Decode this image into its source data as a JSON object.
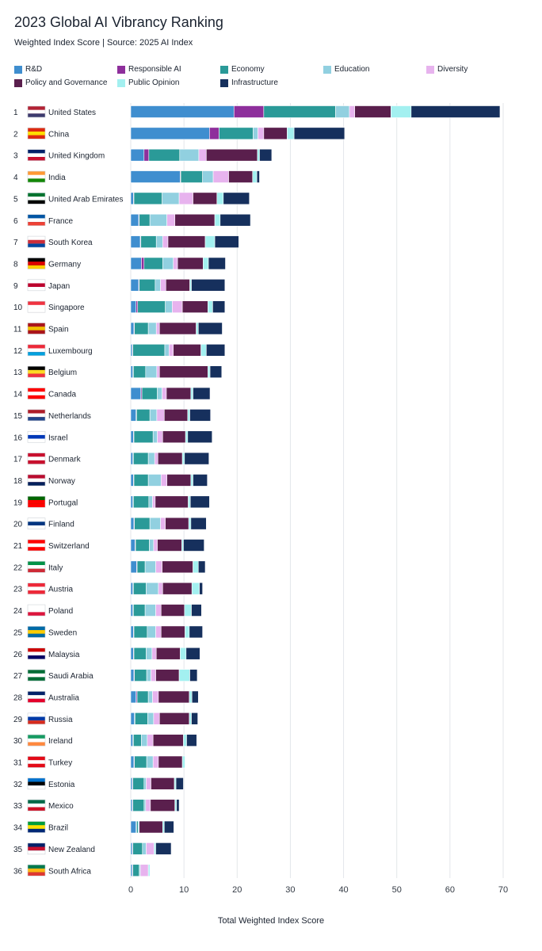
{
  "chart_data": {
    "type": "bar",
    "orientation": "horizontal",
    "stacked": true,
    "title": "2023 Global AI Vibrancy Ranking",
    "subtitle": "Weighted Index Score | Source: 2025 AI Index",
    "xlabel": "Total Weighted Index Score",
    "xlim": [
      0,
      70
    ],
    "xticks": [
      0,
      10,
      20,
      30,
      40,
      50,
      60,
      70
    ],
    "grid": true,
    "legend_position": "top",
    "categories": [
      "United States",
      "China",
      "United Kingdom",
      "India",
      "United Arab Emirates",
      "France",
      "South Korea",
      "Germany",
      "Japan",
      "Singapore",
      "Spain",
      "Luxembourg",
      "Belgium",
      "Canada",
      "Netherlands",
      "Israel",
      "Denmark",
      "Norway",
      "Portugal",
      "Finland",
      "Switzerland",
      "Italy",
      "Austria",
      "Poland",
      "Sweden",
      "Malaysia",
      "Saudi Arabia",
      "Australia",
      "Russia",
      "Ireland",
      "Turkey",
      "Estonia",
      "Mexico",
      "Brazil",
      "New Zealand",
      "South Africa"
    ],
    "ranks": [
      "1",
      "2",
      "3",
      "4",
      "5",
      "6",
      "7",
      "8",
      "9",
      "10",
      "11",
      "12",
      "13",
      "14",
      "15",
      "16",
      "17",
      "18",
      "19",
      "20",
      "21",
      "22",
      "23",
      "24",
      "25",
      "26",
      "27",
      "28",
      "29",
      "30",
      "31",
      "32",
      "33",
      "34",
      "35",
      "36"
    ],
    "series": [
      {
        "name": "R&D",
        "color": "#3f8ecf",
        "values": [
          19.4,
          14.8,
          2.5,
          9.3,
          0.5,
          1.5,
          1.8,
          2.0,
          1.5,
          1.0,
          0.6,
          0.3,
          0.4,
          1.9,
          1.0,
          0.5,
          0.4,
          0.5,
          0.4,
          0.6,
          0.8,
          1.1,
          0.4,
          0.4,
          0.5,
          0.5,
          0.6,
          1.0,
          0.7,
          0.4,
          0.6,
          0.3,
          0.3,
          1.0,
          0.3,
          0.3
        ]
      },
      {
        "name": "Responsible AI",
        "color": "#8e2f9c",
        "values": [
          5.6,
          1.8,
          0.9,
          0.1,
          0.1,
          0.1,
          0.1,
          0.5,
          0.1,
          0.3,
          0.1,
          0.1,
          0.1,
          0.2,
          0.1,
          0.1,
          0.1,
          0.1,
          0.1,
          0.1,
          0.1,
          0.1,
          0.1,
          0.1,
          0.1,
          0.1,
          0.1,
          0.2,
          0.1,
          0.1,
          0.1,
          0.1,
          0.1,
          0.1,
          0.1,
          0.1
        ]
      },
      {
        "name": "Economy",
        "color": "#2a9a98",
        "values": [
          13.5,
          6.4,
          5.8,
          4.1,
          5.3,
          2.0,
          2.9,
          3.5,
          3.0,
          5.2,
          2.6,
          6.0,
          2.3,
          2.9,
          2.5,
          3.6,
          2.8,
          2.7,
          2.9,
          2.9,
          2.6,
          1.5,
          2.4,
          2.2,
          2.5,
          2.3,
          2.3,
          2.1,
          2.4,
          1.5,
          2.3,
          2.1,
          2.1,
          0.3,
          1.8,
          1.2
        ]
      },
      {
        "name": "Education",
        "color": "#91d0e0",
        "values": [
          2.6,
          0.9,
          3.6,
          2.0,
          3.2,
          3.2,
          1.2,
          2.0,
          1.0,
          1.3,
          1.5,
          0.8,
          2.1,
          0.9,
          1.3,
          0.8,
          1.2,
          2.4,
          0.7,
          2.0,
          0.8,
          2.0,
          2.3,
          2.0,
          1.6,
          1.1,
          0.8,
          0.8,
          1.1,
          1.1,
          1.2,
          0.4,
          0.3,
          0.2,
          0.7,
          0.2
        ]
      },
      {
        "name": "Diversity",
        "color": "#e7b3ee",
        "values": [
          1.0,
          1.1,
          1.4,
          2.9,
          2.6,
          1.5,
          1.0,
          0.8,
          1.0,
          1.9,
          0.6,
          0.8,
          0.5,
          0.8,
          1.4,
          1.0,
          0.6,
          1.1,
          0.5,
          0.9,
          0.7,
          1.2,
          0.8,
          1.0,
          1.0,
          0.8,
          0.9,
          1.1,
          1.1,
          1.1,
          1.0,
          0.9,
          0.9,
          0.0,
          1.5,
          1.5
        ]
      },
      {
        "name": "Policy and Governance",
        "color": "#5a1f4d",
        "values": [
          6.8,
          4.4,
          9.6,
          4.5,
          4.5,
          7.5,
          7.0,
          4.8,
          4.5,
          4.8,
          6.9,
          5.2,
          9.1,
          4.6,
          4.4,
          4.3,
          4.6,
          4.5,
          6.2,
          4.4,
          4.6,
          5.8,
          5.5,
          4.4,
          4.5,
          4.5,
          4.4,
          5.8,
          5.6,
          5.7,
          4.5,
          4.4,
          4.6,
          4.4,
          0.0,
          0.0
        ]
      },
      {
        "name": "Public Opinion",
        "color": "#a3f0f0",
        "values": [
          3.8,
          1.3,
          0.4,
          0.8,
          1.2,
          1.0,
          1.8,
          1.0,
          0.3,
          0.9,
          0.4,
          1.0,
          0.4,
          0.4,
          0.4,
          0.4,
          0.4,
          0.4,
          0.4,
          0.4,
          0.3,
          1.0,
          1.4,
          1.3,
          0.8,
          1.1,
          2.0,
          0.5,
          0.4,
          0.6,
          0.5,
          0.3,
          0.3,
          0.3,
          0.3,
          0.3
        ]
      },
      {
        "name": "Infrastructure",
        "color": "#16305d",
        "values": [
          16.7,
          9.5,
          2.3,
          0.5,
          4.9,
          5.7,
          4.5,
          3.2,
          6.3,
          2.3,
          4.5,
          3.5,
          2.2,
          3.2,
          3.9,
          4.6,
          4.6,
          2.7,
          3.6,
          2.9,
          3.9,
          1.3,
          0.6,
          1.9,
          2.5,
          2.6,
          1.4,
          1.2,
          1.2,
          1.9,
          0.0,
          1.4,
          0.5,
          1.8,
          2.9,
          0.0
        ]
      }
    ]
  }
}
